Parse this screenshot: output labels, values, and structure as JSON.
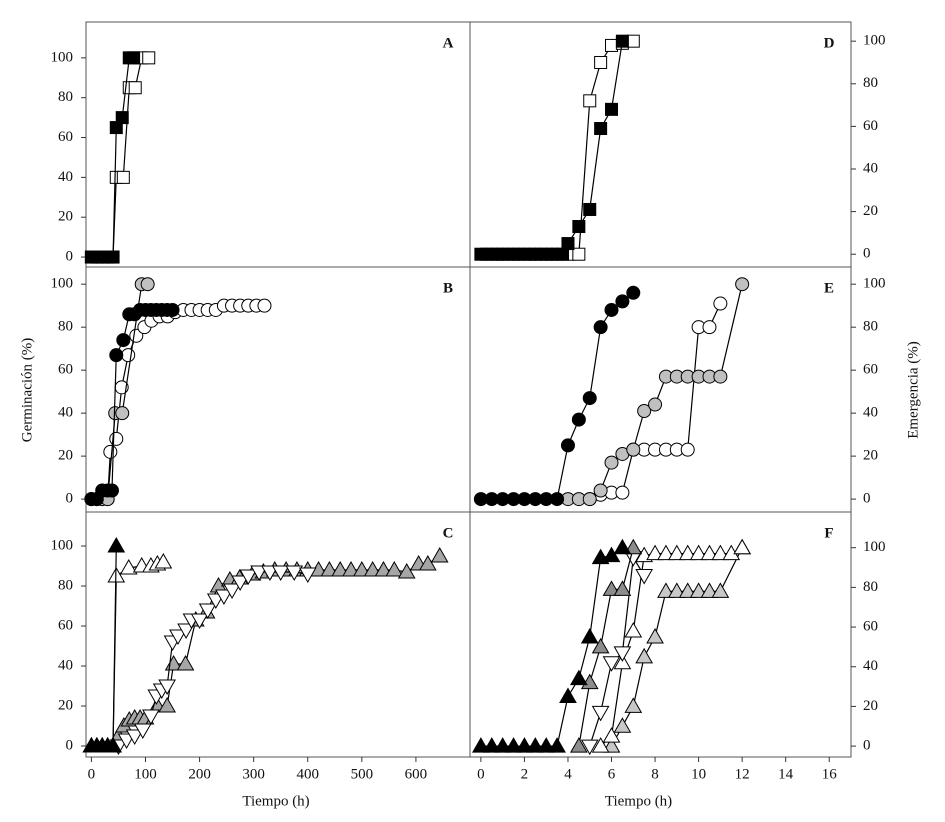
{
  "chart_data": [
    {
      "type": "line",
      "title": "A",
      "xlim": [
        -10,
        700
      ],
      "ylim": [
        -5,
        118
      ],
      "yticks": [
        0,
        20,
        40,
        60,
        80,
        100
      ],
      "series": [
        {
          "marker": "s",
          "color": "#ffffff",
          "x": [
            0,
            10,
            20,
            30,
            40,
            46,
            59,
            70,
            81,
            93,
            106
          ],
          "values": [
            0,
            0,
            0,
            0,
            0,
            40,
            40,
            85,
            85,
            100,
            100
          ]
        },
        {
          "marker": "s",
          "color": "#000000",
          "x": [
            0,
            10,
            20,
            30,
            40,
            46,
            57,
            70,
            78
          ],
          "values": [
            0,
            0,
            0,
            0,
            0,
            65,
            70,
            100,
            100
          ]
        }
      ]
    },
    {
      "type": "line",
      "title": "B",
      "ylabel": "Germinación (%)",
      "xlim": [
        -10,
        700
      ],
      "ylim": [
        -6,
        108
      ],
      "yticks": [
        0,
        20,
        40,
        60,
        80,
        100
      ],
      "series": [
        {
          "marker": "o",
          "color": "#ffffff",
          "x": [
            0,
            10,
            20,
            30,
            35,
            46,
            56,
            68,
            83,
            98,
            111,
            126,
            141,
            155,
            170,
            185,
            200,
            215,
            230,
            245,
            260,
            275,
            290,
            305,
            320
          ],
          "values": [
            0,
            0,
            0,
            0,
            22,
            28,
            52,
            67,
            76,
            80,
            83,
            85,
            85,
            87,
            88,
            88,
            88,
            88,
            88,
            90,
            90,
            90,
            90,
            90,
            90
          ]
        },
        {
          "marker": "o",
          "color": "#c0c0c0",
          "x": [
            0,
            10,
            20,
            30,
            44,
            57,
            93,
            104
          ],
          "values": [
            0,
            0,
            0,
            0,
            40,
            40,
            100,
            100
          ]
        },
        {
          "marker": "o",
          "color": "#000000",
          "x": [
            0,
            10,
            20,
            30,
            38,
            46,
            59,
            70,
            80,
            90,
            100,
            110,
            120,
            130,
            140,
            150
          ],
          "values": [
            0,
            0,
            4,
            4,
            4,
            67,
            74,
            86,
            86,
            88,
            88,
            88,
            88,
            88,
            88,
            88
          ]
        }
      ]
    },
    {
      "type": "line",
      "title": "C",
      "xlabel": "Tiempo (h)",
      "xlim": [
        -10,
        700
      ],
      "ylim": [
        -5.5,
        117
      ],
      "yticks": [
        0,
        20,
        40,
        60,
        80,
        100
      ],
      "xticks": [
        0,
        100,
        200,
        300,
        400,
        500,
        600
      ],
      "series": [
        {
          "marker": "^",
          "color": "#a6a6a6",
          "x": [
            0,
            10,
            20,
            30,
            40,
            50,
            60,
            70,
            80,
            90,
            100,
            122,
            140,
            152,
            174,
            193,
            213,
            235,
            256,
            274,
            298,
            318,
            339,
            360,
            380,
            400,
            420,
            440,
            460,
            480,
            500,
            520,
            540,
            560,
            583,
            605,
            622,
            644
          ],
          "values": [
            0,
            0,
            0,
            0,
            0,
            5,
            10,
            13,
            14,
            14,
            14,
            20,
            20,
            41,
            41,
            63,
            67,
            80,
            83,
            84,
            86,
            87,
            88,
            88,
            88,
            88,
            88,
            88,
            88,
            88,
            88,
            88,
            88,
            88,
            87,
            91,
            91,
            95
          ]
        },
        {
          "marker": "v",
          "color": "#ffffff",
          "x": [
            50,
            65,
            80,
            95,
            110,
            120,
            130,
            140,
            150,
            160,
            175,
            185,
            200,
            215,
            230,
            245,
            260,
            275,
            290,
            310,
            330,
            350,
            375,
            400
          ],
          "values": [
            0,
            3,
            5,
            8,
            15,
            25,
            28,
            30,
            52,
            55,
            58,
            63,
            63,
            68,
            73,
            75,
            78,
            82,
            85,
            87,
            87,
            87,
            87,
            86
          ]
        },
        {
          "marker": "^",
          "color": "#ffffff",
          "x": [
            0,
            10,
            20,
            30,
            40,
            46,
            69,
            93,
            110,
            122,
            133
          ],
          "values": [
            0,
            0,
            0,
            0,
            0,
            85,
            89,
            90,
            90,
            91,
            92
          ]
        },
        {
          "marker": "^",
          "color": "#000000",
          "x": [
            0,
            10,
            20,
            30,
            40,
            46
          ],
          "values": [
            0,
            0,
            0,
            0,
            0,
            100
          ]
        }
      ]
    },
    {
      "type": "line",
      "title": "D",
      "xlim": [
        -0.5,
        17
      ],
      "ylim": [
        -6,
        109
      ],
      "yticks": [
        0,
        20,
        40,
        60,
        80,
        100
      ],
      "series": [
        {
          "marker": "s",
          "color": "#ffffff",
          "x": [
            4,
            4.5,
            5,
            5.5,
            6,
            6.5,
            7
          ],
          "values": [
            0,
            0,
            72,
            90,
            98,
            99,
            100
          ]
        },
        {
          "marker": "s",
          "color": "#000000",
          "x": [
            0,
            0.25,
            0.5,
            0.75,
            1,
            1.25,
            1.5,
            1.75,
            2,
            2.25,
            2.5,
            2.75,
            3,
            3.25,
            3.5,
            3.75,
            4,
            4.5,
            5,
            5.5,
            6,
            6.5
          ],
          "values": [
            0,
            0,
            0,
            0,
            0,
            0,
            0,
            0,
            0,
            0,
            0,
            0,
            0,
            0,
            0,
            0,
            5,
            13,
            21,
            59,
            68,
            100
          ]
        }
      ]
    },
    {
      "type": "line",
      "title": "E",
      "ylabel": "Emergencia (%)",
      "xlim": [
        -0.5,
        17
      ],
      "ylim": [
        -6,
        108
      ],
      "yticks": [
        0,
        20,
        40,
        60,
        80,
        100
      ],
      "series": [
        {
          "marker": "o",
          "color": "#ffffff",
          "x": [
            5,
            5.5,
            6,
            6.5,
            7,
            7.5,
            8,
            8.5,
            9,
            9.5,
            10,
            10.5,
            11
          ],
          "values": [
            0,
            2,
            3,
            3,
            23,
            23,
            23,
            23,
            23,
            23,
            80,
            80,
            91
          ]
        },
        {
          "marker": "o",
          "color": "#c0c0c0",
          "x": [
            4,
            4.5,
            5,
            5.5,
            6,
            6.5,
            7,
            7.5,
            8,
            8.5,
            9,
            9.5,
            10,
            10.5,
            11,
            12
          ],
          "values": [
            0,
            0,
            0,
            4,
            17,
            21,
            23,
            41,
            44,
            57,
            57,
            57,
            57,
            57,
            57,
            100
          ]
        },
        {
          "marker": "o",
          "color": "#000000",
          "x": [
            0,
            0.5,
            1,
            1.5,
            2,
            2.5,
            3,
            3.5,
            4,
            4.5,
            5,
            5.5,
            6,
            6.5,
            7
          ],
          "values": [
            0,
            0,
            0,
            0,
            0,
            0,
            0,
            0,
            25,
            37,
            47,
            80,
            88,
            92,
            96
          ]
        }
      ]
    },
    {
      "type": "line",
      "title": "F",
      "xlabel": "Tiempo (h)",
      "xlim": [
        -0.5,
        17
      ],
      "ylim": [
        -5.5,
        118
      ],
      "yticks": [
        0,
        20,
        40,
        60,
        80,
        100
      ],
      "xticks": [
        0,
        2,
        4,
        6,
        8,
        10,
        12,
        14,
        16
      ],
      "series": [
        {
          "marker": "^",
          "color": "#c8c8c8",
          "x": [
            6,
            6.5,
            7,
            7.5,
            8,
            8.5,
            9,
            9.5,
            10,
            10.5,
            11,
            12
          ],
          "values": [
            0,
            10,
            20,
            45,
            55,
            78,
            78,
            78,
            78,
            78,
            78,
            100
          ]
        },
        {
          "marker": "^",
          "color": "#ffffff",
          "x": [
            5.5,
            6,
            6.5,
            7,
            7.5,
            8,
            8.5,
            9,
            9.5,
            10,
            10.5,
            11,
            11.5,
            12
          ],
          "values": [
            0,
            5,
            42,
            58,
            96,
            97,
            97,
            97,
            97,
            97,
            97,
            97,
            97,
            100
          ]
        },
        {
          "marker": "v",
          "color": "#ffffff",
          "x": [
            5,
            5.5,
            6,
            6.5,
            7,
            7.5
          ],
          "values": [
            0,
            17,
            42,
            47,
            95,
            86
          ]
        },
        {
          "marker": "^",
          "color": "#8c8c8c",
          "x": [
            4.5,
            5,
            5.5,
            6,
            6.5,
            7
          ],
          "values": [
            0,
            32,
            50,
            79,
            79,
            100
          ]
        },
        {
          "marker": "^",
          "color": "#000000",
          "x": [
            0,
            0.5,
            1,
            1.5,
            2,
            2.5,
            3,
            3.5,
            4,
            4.5,
            5,
            5.5,
            6,
            6.5
          ],
          "values": [
            0,
            0,
            0,
            0,
            0,
            0,
            0,
            0,
            25,
            34,
            55,
            95,
            96,
            100
          ]
        }
      ]
    }
  ]
}
